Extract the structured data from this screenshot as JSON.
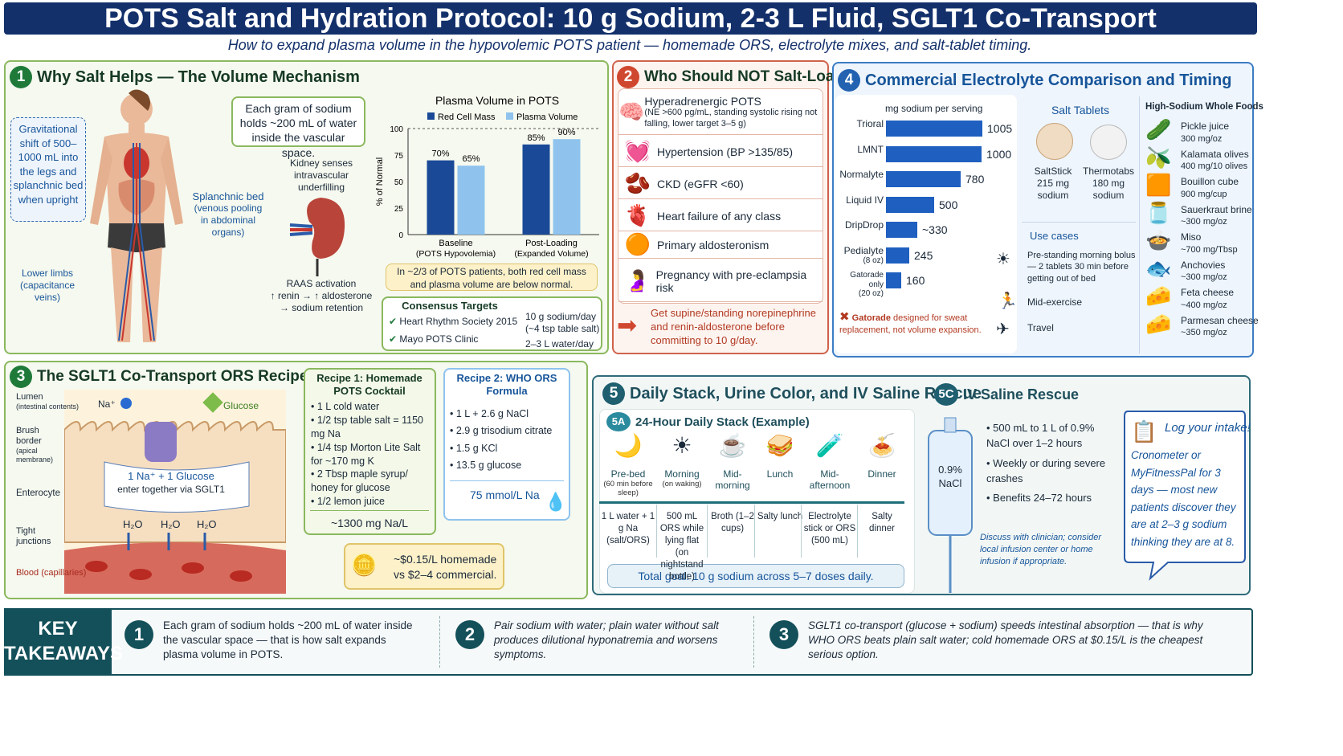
{
  "header": {
    "title": "POTS Salt and Hydration Protocol: 10 g Sodium, 2-3 L Fluid, SGLT1 Co-Transport",
    "subtitle": "How to expand plasma volume in the hypovolemic POTS patient — homemade ORS, electrolyte mixes, and salt-tablet timing."
  },
  "p1": {
    "num": "1",
    "title": "Why Salt Helps — The Volume Mechanism",
    "gravitational": "Gravitational shift of 500–1000 mL into the legs and splanchnic bed when upright",
    "lower_limbs": "Lower limbs (capacitance veins)",
    "splanchnic_title": "Splanchnic bed",
    "splanchnic_sub": "(venous pooling in abdominal organs)",
    "sodium_box": "Each gram of sodium holds ~200 mL of water inside the vascular space.",
    "kidney": "Kidney senses intravascular underfilling",
    "raas_1": "RAAS activation",
    "raas_2": "↑ renin → ↑ aldosterone",
    "raas_3": "→ sodium retention",
    "note": "In ~2/3 of POTS patients, both red cell mass and plasma volume are below normal.",
    "targets_title": "Consensus Targets",
    "targets": [
      "Heart Rhythm Society 2015",
      "Mayo POTS Clinic"
    ],
    "targets_right": [
      "10 g sodium/day",
      "(~4 tsp table salt)",
      "2–3 L water/day"
    ]
  },
  "chart_data": {
    "type": "bar",
    "title": "Plasma Volume in POTS",
    "ylabel": "% of Normal",
    "ylim": [
      0,
      100
    ],
    "yticks": [
      0,
      25,
      50,
      75,
      100
    ],
    "categories": [
      "Baseline",
      "Post-Loading"
    ],
    "category_sub": [
      "(POTS Hypovolemia)",
      "(Expanded Volume)"
    ],
    "series": [
      {
        "name": "Red Cell Mass",
        "values": [
          70,
          85
        ],
        "labels": [
          "70%",
          "85%"
        ],
        "color": "#1a4a97"
      },
      {
        "name": "Plasma Volume",
        "values": [
          65,
          90
        ],
        "labels": [
          "65%",
          "90%"
        ],
        "color": "#8fc3ee"
      }
    ]
  },
  "p2": {
    "num": "2",
    "title": "Who Should NOT Salt-Load",
    "items": [
      {
        "icon": "🧠",
        "icon_name": "brain-icon",
        "label": "Hyperadrenergic POTS",
        "sub": "(NE >600 pg/mL, standing systolic rising not falling, lower target 3–5 g)"
      },
      {
        "icon": "💓",
        "icon_name": "heartbeat-icon",
        "label": "Hypertension (BP >135/85)",
        "sub": ""
      },
      {
        "icon": "🫘",
        "icon_name": "kidney-icon",
        "label": "CKD (eGFR <60)",
        "sub": ""
      },
      {
        "icon": "🫀",
        "icon_name": "heart-icon",
        "label": "Heart failure of any class",
        "sub": ""
      },
      {
        "icon": "🟠",
        "icon_name": "adrenal-icon",
        "label": "Primary aldosteronism",
        "sub": ""
      },
      {
        "icon": "🤰",
        "icon_name": "pregnancy-icon",
        "label": "Pregnancy with pre-eclampsia risk",
        "sub": ""
      }
    ],
    "warning": "Get supine/standing norepinephrine and renin-aldosterone before committing to 10 g/day."
  },
  "p4": {
    "num": "4",
    "title": "Commercial Electrolyte Comparison and Timing",
    "bars_title": "mg sodium per serving",
    "bars": [
      {
        "name": "Trioral",
        "sub": "",
        "value": 1005,
        "label": "1005"
      },
      {
        "name": "LMNT",
        "sub": "",
        "value": 1000,
        "label": "1000"
      },
      {
        "name": "Normalyte",
        "sub": "",
        "value": 780,
        "label": "780"
      },
      {
        "name": "Liquid IV",
        "sub": "",
        "value": 500,
        "label": "500"
      },
      {
        "name": "DripDrop",
        "sub": "",
        "value": 330,
        "label": "~330"
      },
      {
        "name": "Pedialyte",
        "sub": "(8 oz)",
        "value": 245,
        "label": "245"
      },
      {
        "name": "Gatorade only",
        "sub": "(20 oz)",
        "value": 160,
        "label": "160"
      }
    ],
    "gatorade_note_bold": "Gatorade",
    "gatorade_note": " designed for sweat replacement, not volume expansion.",
    "tablets_title": "Salt Tablets",
    "tablets": [
      {
        "name": "SaltStick",
        "value": "215 mg",
        "unit": "sodium"
      },
      {
        "name": "Thermotabs",
        "value": "180 mg",
        "unit": "sodium"
      }
    ],
    "use_title": "Use cases",
    "uses": [
      {
        "icon": "☀",
        "label": "Pre-standing morning bolus — 2 tablets 30 min before getting out of bed"
      },
      {
        "icon": "🏃",
        "label": "Mid-exercise"
      },
      {
        "icon": "✈",
        "label": "Travel"
      }
    ],
    "foods_title": "High-Sodium Whole Foods",
    "foods": [
      {
        "icon": "🥒",
        "name": "Pickle juice",
        "val": "300 mg/oz"
      },
      {
        "icon": "🫒",
        "name": "Kalamata olives",
        "val": "400 mg/10 olives"
      },
      {
        "icon": "🟧",
        "name": "Bouillon cube",
        "val": "900 mg/cup"
      },
      {
        "icon": "🫙",
        "name": "Sauerkraut brine",
        "val": "~300 mg/oz"
      },
      {
        "icon": "🍲",
        "name": "Miso",
        "val": "~700 mg/Tbsp"
      },
      {
        "icon": "🐟",
        "name": "Anchovies",
        "val": "~300 mg/oz"
      },
      {
        "icon": "🧀",
        "name": "Feta cheese",
        "val": "~400 mg/oz"
      },
      {
        "icon": "🧀",
        "name": "Parmesan cheese",
        "val": "~350 mg/oz"
      }
    ]
  },
  "p3": {
    "num": "3",
    "title": "The SGLT1 Co-Transport ORS Recipe",
    "labels": {
      "lumen": "Lumen",
      "lumen_sub": "(intestinal contents)",
      "na": "Na⁺",
      "glucose": "Glucose",
      "brush": "Brush border",
      "brush_sub": "(apical membrane)",
      "entero": "Enterocyte",
      "tight": "Tight junctions",
      "blood": "Blood (capillaries)",
      "together1": "1 Na⁺  +  1 Glucose",
      "together2": "enter together via SGLT1",
      "h2o": "H₂O"
    },
    "recipe1_title": "Recipe 1: Homemade POTS Cocktail",
    "recipe1": [
      "1 L cold water",
      "1/2 tsp table salt = 1150 mg Na",
      "1/4 tsp Morton Lite Salt for ~170 mg K",
      "2 Tbsp maple syrup/ honey for glucose",
      "1/2 lemon juice"
    ],
    "recipe1_total": "~1300 mg Na/L",
    "recipe2_title": "Recipe 2: WHO ORS Formula",
    "recipe2": [
      "1 L + 2.6 g NaCl",
      "2.9 g trisodium citrate",
      "1.5 g KCl",
      "13.5 g glucose"
    ],
    "recipe2_total": "75 mmol/L Na",
    "cost": "~$0.15/L homemade vs $2–4 commercial."
  },
  "p5": {
    "num": "5",
    "title": "Daily Stack, Urine Color, and IV Saline Rescue",
    "a_num": "5A",
    "a_title": "24-Hour Daily Stack (Example)",
    "stack": [
      {
        "icon": "🌙",
        "time": "Pre-bed",
        "time_sub": "(60 min before sleep)",
        "dose": "1 L water + 1 g Na (salt/ORS)"
      },
      {
        "icon": "☀",
        "time": "Morning",
        "time_sub": "(on waking)",
        "dose": "500 mL ORS while lying flat (on nightstand bottle)"
      },
      {
        "icon": "☕",
        "time": "Mid-morning",
        "time_sub": "",
        "dose": "Broth (1–2 cups)"
      },
      {
        "icon": "🥪",
        "time": "Lunch",
        "time_sub": "",
        "dose": "Salty lunch"
      },
      {
        "icon": "🧪",
        "time": "Mid-afternoon",
        "time_sub": "",
        "dose": "Electrolyte stick or ORS (500 mL)"
      },
      {
        "icon": "🍝",
        "time": "Dinner",
        "time_sub": "",
        "dose": "Salty dinner"
      }
    ],
    "goal": "Total goal:  10 g sodium across 5–7 doses daily.",
    "c_num": "5C",
    "c_title": "IV Saline Rescue",
    "bag": "0.9% NaCl",
    "iv": [
      "500 mL to 1 L of 0.9% NaCl over 1–2 hours",
      "Weekly or during severe crashes",
      "Benefits 24–72 hours"
    ],
    "iv_note": "Discuss with clinician; consider local infusion center or home infusion if appropriate.",
    "log_title": "Log your intake!",
    "log_text": "Cronometer or MyFitnessPal for 3 days — most new patients discover they are at 2–3 g sodium thinking they are at 8."
  },
  "takeaways": {
    "title1": "KEY",
    "title2": "TAKEAWAYS",
    "items": [
      {
        "num": "1",
        "text": "Each gram of sodium holds ~200 mL of water inside the vascular space — that is how salt expands plasma volume in POTS."
      },
      {
        "num": "2",
        "text": "Pair sodium with water; plain water without salt produces dilutional hyponatremia and worsens symptoms."
      },
      {
        "num": "3",
        "text": "SGLT1 co-transport (glucose + sodium) speeds intestinal absorption — that is why WHO ORS beats plain salt water; cold homemade ORS at $0.15/L is the cheapest serious option."
      }
    ]
  }
}
